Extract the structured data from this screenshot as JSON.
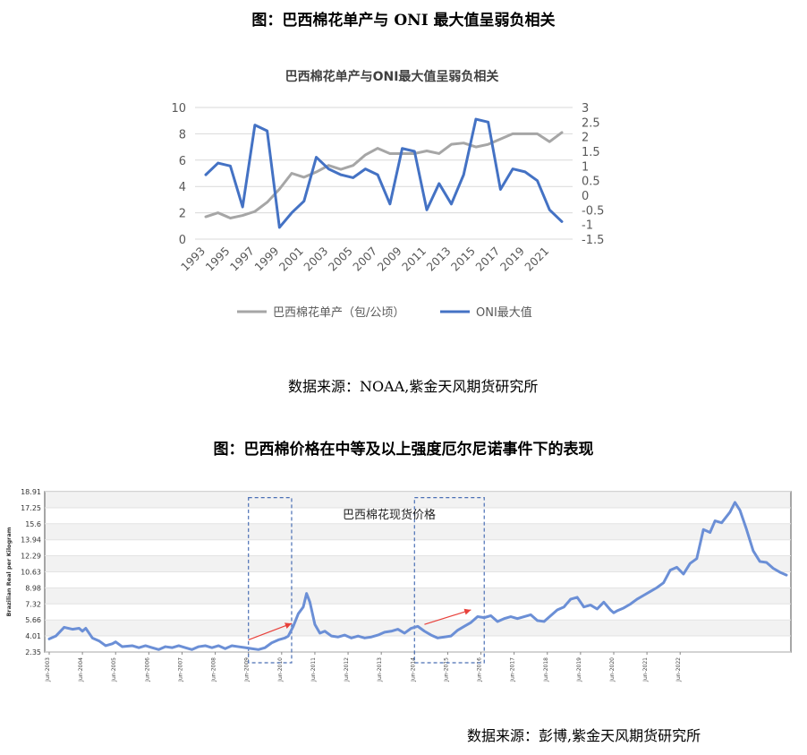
{
  "figure1": {
    "caption": "图：巴西棉花单产与 ONI 最大值呈弱负相关",
    "source": "数据来源：NOAA,紫金天风期货研究所"
  },
  "figure2": {
    "caption": "图：巴西棉价格在中等及以上强度厄尔尼诺事件下的表现",
    "source": "数据来源：彭博,紫金天风期货研究所"
  },
  "chart_data": [
    {
      "type": "line",
      "title": "巴西棉花单产与ONI最大值呈弱负相关",
      "x": [
        1993,
        1994,
        1995,
        1996,
        1997,
        1998,
        1999,
        2000,
        2001,
        2002,
        2003,
        2004,
        2005,
        2006,
        2007,
        2008,
        2009,
        2010,
        2011,
        2012,
        2013,
        2014,
        2015,
        2016,
        2017,
        2018,
        2019,
        2020,
        2021,
        2022
      ],
      "x_tick_labels": [
        "1993",
        "1995",
        "1997",
        "1999",
        "2001",
        "2003",
        "2005",
        "2007",
        "2009",
        "2011",
        "2013",
        "2015",
        "2017",
        "2019",
        "2021"
      ],
      "y_left_ticks": [
        "0",
        "2",
        "4",
        "6",
        "8",
        "10"
      ],
      "y_right_ticks": [
        "-1.5",
        "-1",
        "-0.5",
        "0",
        "0.5",
        "1",
        "1.5",
        "2",
        "2.5",
        "3"
      ],
      "ylim_left": [
        0,
        10
      ],
      "ylim_right": [
        -1.5,
        3
      ],
      "series": [
        {
          "name": "巴西棉花单产（包/公顷）",
          "axis": "left",
          "color": "#a6a6a6",
          "values": [
            1.7,
            2.0,
            1.6,
            1.8,
            2.1,
            2.8,
            3.8,
            5.0,
            4.7,
            5.1,
            5.6,
            5.3,
            5.6,
            6.4,
            6.9,
            6.5,
            6.5,
            6.5,
            6.7,
            6.5,
            7.2,
            7.3,
            7.0,
            7.2,
            7.6,
            8.0,
            8.0,
            8.0,
            7.4,
            8.1
          ]
        },
        {
          "name": "ONI最大值",
          "axis": "right",
          "color": "#4472c4",
          "values": [
            0.7,
            1.1,
            1.0,
            -0.4,
            2.4,
            2.2,
            -1.1,
            -0.6,
            -0.2,
            1.3,
            0.9,
            0.7,
            0.6,
            0.9,
            0.7,
            -0.3,
            1.6,
            1.5,
            -0.5,
            0.4,
            -0.3,
            0.7,
            2.6,
            2.5,
            0.2,
            0.9,
            0.8,
            0.5,
            -0.5,
            -0.9
          ]
        }
      ],
      "legend_position": "bottom",
      "grid": true
    },
    {
      "type": "line",
      "title": "巴西棉花现货价格",
      "ylabel": "Brazilian Real per Kilogram",
      "y_ticks": [
        "2.35",
        "4.01",
        "5.66",
        "7.32",
        "8.98",
        "10.63",
        "12.29",
        "13.94",
        "15.6",
        "17.25",
        "18.91"
      ],
      "ylim": [
        2.35,
        18.91
      ],
      "x_tick_labels": [
        "Jun-2003",
        "Jun-2004",
        "Jun-2005",
        "Jun-2006",
        "Jun-2007",
        "Jun-2008",
        "Jun-2009",
        "Jun-2010",
        "Jun-2011",
        "Jun-2012",
        "Jun-2013",
        "Jun-2014",
        "Jun-2015",
        "Jun-2016",
        "Jun-2017",
        "Jun-2018",
        "Jun-2019",
        "Jun-2020",
        "Jun-2021",
        "Jun-2022"
      ],
      "series": [
        {
          "color": "#6b8fd6",
          "points": [
            [
              2003.0,
              3.7
            ],
            [
              2003.2,
              4.0
            ],
            [
              2003.45,
              4.9
            ],
            [
              2003.7,
              4.7
            ],
            [
              2003.9,
              4.8
            ],
            [
              2004.0,
              4.5
            ],
            [
              2004.1,
              4.8
            ],
            [
              2004.3,
              3.8
            ],
            [
              2004.5,
              3.5
            ],
            [
              2004.7,
              3.0
            ],
            [
              2004.9,
              3.2
            ],
            [
              2005.0,
              3.4
            ],
            [
              2005.2,
              2.9
            ],
            [
              2005.5,
              3.0
            ],
            [
              2005.7,
              2.8
            ],
            [
              2005.9,
              3.0
            ],
            [
              2006.1,
              2.8
            ],
            [
              2006.3,
              2.6
            ],
            [
              2006.5,
              2.9
            ],
            [
              2006.7,
              2.8
            ],
            [
              2006.9,
              3.0
            ],
            [
              2007.1,
              2.8
            ],
            [
              2007.3,
              2.6
            ],
            [
              2007.5,
              2.9
            ],
            [
              2007.7,
              3.0
            ],
            [
              2007.9,
              2.8
            ],
            [
              2008.1,
              3.0
            ],
            [
              2008.3,
              2.7
            ],
            [
              2008.5,
              3.0
            ],
            [
              2008.7,
              2.9
            ],
            [
              2008.9,
              2.8
            ],
            [
              2009.1,
              2.7
            ],
            [
              2009.3,
              2.6
            ],
            [
              2009.5,
              2.8
            ],
            [
              2009.7,
              3.3
            ],
            [
              2009.9,
              3.6
            ],
            [
              2010.1,
              3.8
            ],
            [
              2010.2,
              4.0
            ],
            [
              2010.35,
              5.0
            ],
            [
              2010.5,
              6.3
            ],
            [
              2010.65,
              7.0
            ],
            [
              2010.75,
              8.4
            ],
            [
              2010.85,
              7.5
            ],
            [
              2011.0,
              5.2
            ],
            [
              2011.15,
              4.3
            ],
            [
              2011.3,
              4.5
            ],
            [
              2011.5,
              4.0
            ],
            [
              2011.7,
              3.9
            ],
            [
              2011.9,
              4.1
            ],
            [
              2012.1,
              3.8
            ],
            [
              2012.3,
              4.0
            ],
            [
              2012.5,
              3.8
            ],
            [
              2012.7,
              3.9
            ],
            [
              2012.9,
              4.1
            ],
            [
              2013.1,
              4.4
            ],
            [
              2013.3,
              4.5
            ],
            [
              2013.5,
              4.7
            ],
            [
              2013.7,
              4.3
            ],
            [
              2013.9,
              4.8
            ],
            [
              2014.1,
              5.0
            ],
            [
              2014.3,
              4.5
            ],
            [
              2014.5,
              4.1
            ],
            [
              2014.7,
              3.8
            ],
            [
              2014.9,
              3.9
            ],
            [
              2015.1,
              4.0
            ],
            [
              2015.3,
              4.6
            ],
            [
              2015.5,
              5.0
            ],
            [
              2015.7,
              5.4
            ],
            [
              2015.9,
              6.0
            ],
            [
              2016.1,
              5.9
            ],
            [
              2016.3,
              6.1
            ],
            [
              2016.5,
              5.5
            ],
            [
              2016.7,
              5.8
            ],
            [
              2016.9,
              6.0
            ],
            [
              2017.1,
              5.8
            ],
            [
              2017.3,
              6.0
            ],
            [
              2017.5,
              6.2
            ],
            [
              2017.7,
              5.6
            ],
            [
              2017.9,
              5.5
            ],
            [
              2018.1,
              6.1
            ],
            [
              2018.3,
              6.7
            ],
            [
              2018.5,
              7.0
            ],
            [
              2018.7,
              7.8
            ],
            [
              2018.9,
              8.0
            ],
            [
              2019.0,
              7.5
            ],
            [
              2019.1,
              7.0
            ],
            [
              2019.3,
              7.2
            ],
            [
              2019.5,
              6.8
            ],
            [
              2019.7,
              7.5
            ],
            [
              2019.9,
              6.7
            ],
            [
              2020.0,
              6.4
            ],
            [
              2020.1,
              6.6
            ],
            [
              2020.3,
              6.9
            ],
            [
              2020.5,
              7.3
            ],
            [
              2020.7,
              7.8
            ],
            [
              2020.9,
              8.2
            ],
            [
              2021.1,
              8.6
            ],
            [
              2021.3,
              9.0
            ],
            [
              2021.5,
              9.5
            ],
            [
              2021.7,
              10.8
            ],
            [
              2021.9,
              11.1
            ],
            [
              2022.1,
              10.4
            ],
            [
              2022.3,
              11.5
            ],
            [
              2022.5,
              12.0
            ],
            [
              2022.7,
              15.0
            ],
            [
              2022.9,
              14.7
            ],
            [
              2023.05,
              15.9
            ],
            [
              2023.25,
              15.7
            ],
            [
              2023.5,
              16.8
            ],
            [
              2023.65,
              17.8
            ],
            [
              2023.8,
              17.0
            ],
            [
              2024.0,
              15.0
            ],
            [
              2024.2,
              12.8
            ],
            [
              2024.4,
              11.7
            ],
            [
              2024.6,
              11.6
            ],
            [
              2024.8,
              11.0
            ],
            [
              2025.0,
              10.6
            ],
            [
              2025.2,
              10.3
            ]
          ]
        }
      ],
      "highlight_boxes": [
        {
          "x": [
            2009.0,
            2010.3
          ],
          "y": [
            2.35,
            18.3
          ]
        },
        {
          "x": [
            2014.0,
            2016.1
          ],
          "y": [
            2.35,
            18.3
          ]
        }
      ],
      "arrows": [
        {
          "from": [
            2009.0,
            3.6
          ],
          "to": [
            2010.3,
            5.3
          ],
          "color": "#e8413b"
        },
        {
          "from": [
            2014.3,
            5.2
          ],
          "to": [
            2015.7,
            6.7
          ],
          "color": "#e8413b"
        }
      ]
    }
  ]
}
